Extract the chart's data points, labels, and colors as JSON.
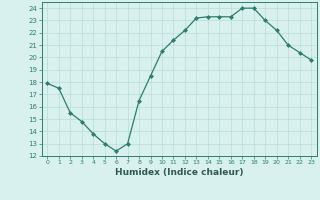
{
  "x": [
    0,
    1,
    2,
    3,
    4,
    5,
    6,
    7,
    8,
    9,
    10,
    11,
    12,
    13,
    14,
    15,
    16,
    17,
    18,
    19,
    20,
    21,
    22,
    23
  ],
  "y": [
    17.9,
    17.5,
    15.5,
    14.8,
    13.8,
    13.0,
    12.4,
    13.0,
    16.5,
    18.5,
    20.5,
    21.4,
    22.2,
    23.2,
    23.3,
    23.3,
    23.3,
    24.0,
    24.0,
    23.0,
    22.2,
    21.0,
    20.4,
    19.8
  ],
  "line_color": "#2e7d6e",
  "marker": "D",
  "marker_size": 2.0,
  "bg_color": "#d8f0ee",
  "grid_color": "#b8dcd8",
  "xlabel": "Humidex (Indice chaleur)",
  "ylim": [
    12,
    24.5
  ],
  "xlim": [
    -0.5,
    23.5
  ],
  "yticks": [
    12,
    13,
    14,
    15,
    16,
    17,
    18,
    19,
    20,
    21,
    22,
    23,
    24
  ],
  "xticks": [
    0,
    1,
    2,
    3,
    4,
    5,
    6,
    7,
    8,
    9,
    10,
    11,
    12,
    13,
    14,
    15,
    16,
    17,
    18,
    19,
    20,
    21,
    22,
    23
  ],
  "tick_color": "#2e7d6e",
  "label_color": "#2e5a50"
}
